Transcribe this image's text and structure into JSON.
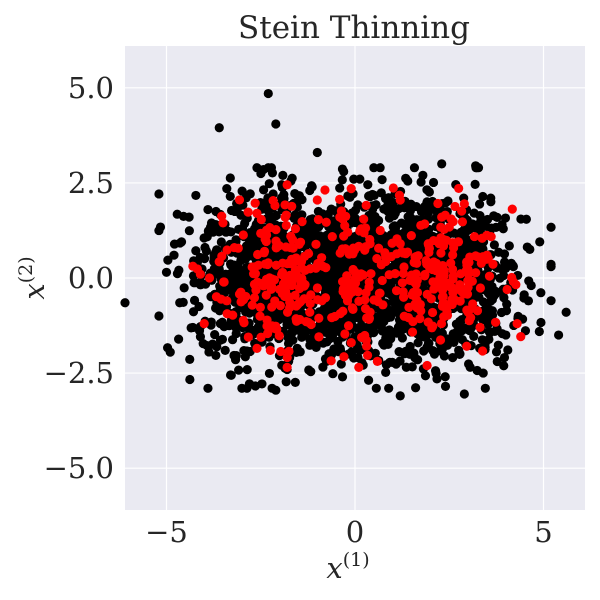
{
  "chart_data": {
    "type": "scatter",
    "title": "Stein Thinning",
    "xlabel": "x",
    "xlabel_superscript": "(1)",
    "ylabel": "x",
    "ylabel_superscript": "(2)",
    "xlim": [
      -6.1,
      6.1
    ],
    "ylim": [
      -6.1,
      6.1
    ],
    "xticks": [
      -5,
      0,
      5
    ],
    "xtick_labels": [
      "−5",
      "0",
      "5"
    ],
    "yticks": [
      5,
      2.5,
      0,
      -2.5,
      -5
    ],
    "ytick_labels": [
      "5.0",
      "2.5",
      "0.0",
      "−2.5",
      "−5.0"
    ],
    "grid": true,
    "background": "#eaeaf2",
    "grid_color": "#ffffff",
    "series": [
      {
        "color": "#000000",
        "description": "full sample (bimodal cloud, modes near x=-2 and x=2)",
        "points": [
          [
            -2.3,
            4.85
          ],
          [
            -3.6,
            3.95
          ],
          [
            -2.1,
            4.05
          ],
          [
            -1.0,
            3.3
          ],
          [
            -6.1,
            -0.65
          ],
          [
            5.6,
            -0.9
          ],
          [
            5.2,
            0.3
          ],
          [
            5.4,
            -1.5
          ],
          [
            -4.9,
            -1.95
          ],
          [
            -5.0,
            0.15
          ],
          [
            -3.9,
            -2.9
          ],
          [
            1.2,
            -3.1
          ],
          [
            2.9,
            -3.05
          ],
          [
            -0.3,
            2.8
          ],
          [
            0.5,
            2.9
          ],
          [
            2.3,
            3.0
          ],
          [
            3.2,
            2.95
          ],
          [
            -4.6,
            0.95
          ],
          [
            -4.4,
            1.6
          ],
          [
            4.9,
            0.95
          ],
          [
            4.4,
            1.55
          ],
          [
            -3.0,
            -2.9
          ],
          [
            -2.1,
            -2.95
          ],
          [
            2.4,
            -2.85
          ],
          [
            -3.3,
            -2.55
          ],
          [
            3.4,
            -2.5
          ],
          [
            4.0,
            -1.5
          ],
          [
            -4.3,
            -1.3
          ],
          [
            -2.6,
            2.9
          ],
          [
            1.8,
            2.7
          ],
          [
            -1.2,
            2.3
          ],
          [
            -1.7,
            2.55
          ],
          [
            1.4,
            2.55
          ],
          [
            3.6,
            2.1
          ],
          [
            -3.4,
            2.35
          ],
          [
            4.2,
            0.3
          ],
          [
            -4.8,
            0.6
          ],
          [
            4.6,
            -0.6
          ],
          [
            -3.9,
            1.8
          ],
          [
            3.9,
            1.4
          ]
        ]
      },
      {
        "color": "#ff0000",
        "description": "Stein thinning subsample",
        "points": [
          [
            -0.1,
            2.35
          ],
          [
            0.1,
            -2.35
          ],
          [
            -1.8,
            2.45
          ],
          [
            -1.8,
            -2.35
          ],
          [
            -1.0,
            2.05
          ],
          [
            1.2,
            2.05
          ],
          [
            -3.5,
            1.45
          ],
          [
            -2.6,
            -1.85
          ],
          [
            -4.0,
            -1.2
          ],
          [
            4.3,
            -1.2
          ],
          [
            2.9,
            1.95
          ],
          [
            -2.6,
            1.7
          ],
          [
            2.3,
            1.6
          ],
          [
            -4.1,
            0.1
          ],
          [
            4.2,
            -0.1
          ],
          [
            -0.1,
            -1.7
          ],
          [
            -0.3,
            1.1
          ],
          [
            0.4,
            0.9
          ],
          [
            -0.2,
            -0.6
          ],
          [
            0.4,
            -0.9
          ],
          [
            -3.4,
            -0.6
          ],
          [
            -3.2,
            0.8
          ],
          [
            3.1,
            -0.8
          ],
          [
            3.5,
            0.6
          ],
          [
            -1.6,
            0.1
          ],
          [
            1.6,
            -0.1
          ],
          [
            -2.0,
            -0.3
          ],
          [
            2.0,
            0.3
          ],
          [
            -2.4,
            0.7
          ],
          [
            2.4,
            -0.7
          ],
          [
            -1.2,
            -0.9
          ],
          [
            1.2,
            0.9
          ]
        ]
      }
    ]
  }
}
